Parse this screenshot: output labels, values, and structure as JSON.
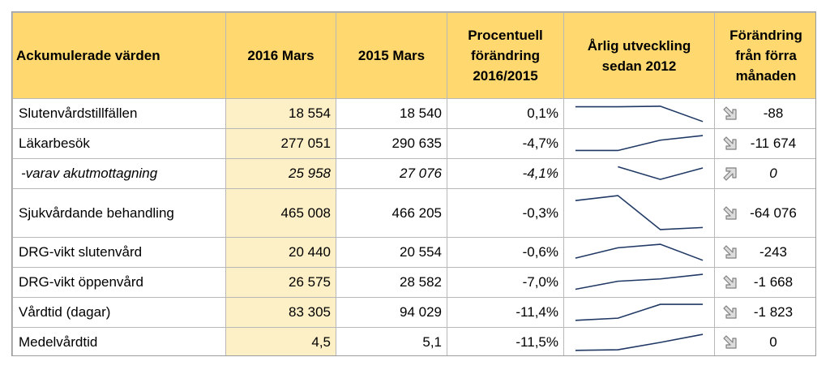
{
  "headers": {
    "label": "Ackumulerade värden",
    "col2016": "2016 Mars",
    "col2015": "2015 Mars",
    "pct": "Procentuell förändring 2016/2015",
    "trend": "Årlig utveckling sedan 2012",
    "change": "Förändring från förra månaden"
  },
  "rows": [
    {
      "label": "Slutenvårdstillfällen",
      "v2016": "18 554",
      "v2015": "18 540",
      "pct": "0,1%",
      "change": "-88",
      "dir": "down",
      "trend": [
        0.2,
        0.2,
        0.18,
        0.85
      ]
    },
    {
      "label": "Läkarbesök",
      "v2016": "277 051",
      "v2015": "290 635",
      "pct": "-4,7%",
      "change": "-11 674",
      "dir": "down",
      "trend": [
        0.8,
        0.8,
        0.35,
        0.15
      ]
    },
    {
      "label": "-varav akutmottagning",
      "v2016": "25 958",
      "v2015": "27 076",
      "pct": "-4,1%",
      "change": "0",
      "dir": "up",
      "trend": [
        null,
        0.2,
        0.75,
        0.25
      ]
    },
    {
      "label": "Sjukvårdande behandling",
      "v2016": "465 008",
      "v2015": "466 205",
      "pct": "-0,3%",
      "change": "-64 076",
      "dir": "down",
      "trend": [
        0.2,
        0.08,
        0.9,
        0.85
      ]
    },
    {
      "label": "DRG-vikt slutenvård",
      "v2016": "20 440",
      "v2015": "20 554",
      "pct": "-0,6%",
      "change": "-243",
      "dir": "down",
      "trend": [
        0.75,
        0.3,
        0.15,
        0.85
      ]
    },
    {
      "label": "DRG-vikt öppenvård",
      "v2016": "26 575",
      "v2015": "28 582",
      "pct": "-7,0%",
      "change": "-1 668",
      "dir": "down",
      "trend": [
        0.8,
        0.45,
        0.35,
        0.15
      ]
    },
    {
      "label": "Vårdtid (dagar)",
      "v2016": "83 305",
      "v2015": "94 029",
      "pct": "-11,4%",
      "change": "-1 823",
      "dir": "down",
      "trend": [
        0.85,
        0.75,
        0.15,
        0.15
      ]
    },
    {
      "label": "Medelvårdtid",
      "v2016": "4,5",
      "v2015": "5,1",
      "pct": "-11,5%",
      "change": "0",
      "dir": "down",
      "trend": [
        0.85,
        0.82,
        0.5,
        0.15
      ]
    }
  ],
  "colors": {
    "header_bg": "#ffd970",
    "highlight": "#fdefc6",
    "spark": "#1f3864",
    "arrow_fill": "#dcdcdc",
    "arrow_stroke": "#7f7f7f"
  }
}
